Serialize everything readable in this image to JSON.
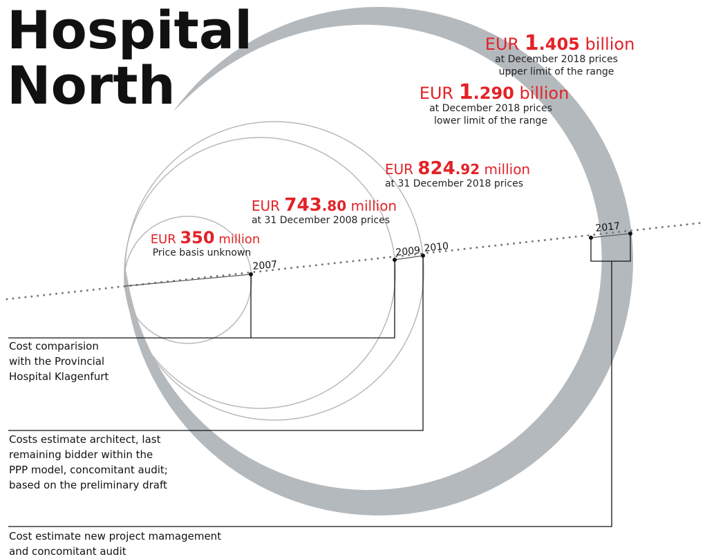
{
  "title": [
    "Hospital",
    "North"
  ],
  "estimates": [
    {
      "prefix": "EUR",
      "amount": "1",
      "decimals": ".405",
      "unit": "billion",
      "lines": [
        "at December 2018 prices",
        "upper limit of the range"
      ]
    },
    {
      "prefix": "EUR",
      "amount": "1",
      "decimals": ".290",
      "unit": "billion",
      "lines": [
        "at December 2018 prices",
        "lower limit of the range"
      ]
    },
    {
      "prefix": "EUR",
      "amount": "824",
      "decimals": ".92",
      "unit": "million",
      "lines": [
        "at 31 December 2018 prices"
      ]
    },
    {
      "prefix": "EUR",
      "amount": "743",
      "decimals": ".80",
      "unit": "million",
      "lines": [
        "at 31 December 2008 prices"
      ]
    },
    {
      "prefix": "EUR",
      "amount": "350",
      "unit": "million",
      "lines": [
        "Price basis unknown"
      ]
    }
  ],
  "years": [
    "2007",
    "2009",
    "2010",
    "2017"
  ],
  "notes": [
    [
      "Cost comparision",
      "with the Provincial",
      "Hospital Klagenfurt"
    ],
    [
      "Costs estimate architect, last",
      "remaining bidder within the",
      "PPP model, concomitant audit;",
      "based on the preliminary draft"
    ],
    [
      "Cost estimate new project mamagement",
      "and concomitant audit"
    ]
  ]
}
